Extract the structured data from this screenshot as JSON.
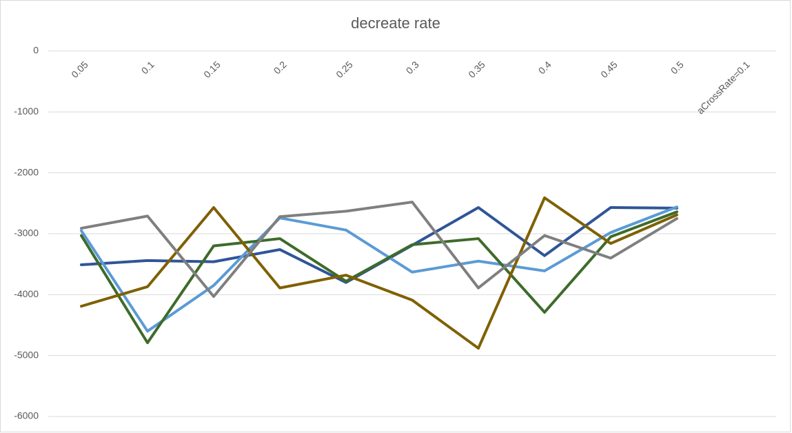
{
  "chart_data": {
    "type": "line",
    "title": "decreate rate",
    "categories": [
      "0.05",
      "0.1",
      "0.15",
      "0.2",
      "0.25",
      "0.3",
      "0.35",
      "0.4",
      "0.45",
      "0.5",
      "aCrossRate=0.1"
    ],
    "series": [
      {
        "color": "#2f5597",
        "values": [
          -3510,
          -3440,
          -3460,
          -3260,
          -3800,
          -3190,
          -2570,
          -3360,
          -2570,
          -2580,
          null
        ]
      },
      {
        "color": "#5b9bd5",
        "values": [
          -2950,
          -4600,
          -3850,
          -2740,
          -2940,
          -3630,
          -3450,
          -3610,
          -2980,
          -2560,
          null
        ]
      },
      {
        "color": "#3e6b2a",
        "values": [
          -3030,
          -4790,
          -3200,
          -3080,
          -3780,
          -3180,
          -3080,
          -4290,
          -3050,
          -2640,
          null
        ]
      },
      {
        "color": "#7f6000",
        "values": [
          -4190,
          -3870,
          -2570,
          -3890,
          -3680,
          -4090,
          -4880,
          -2410,
          -3160,
          -2690,
          null
        ]
      },
      {
        "color": "#7f7f7f",
        "values": [
          -2910,
          -2710,
          -4030,
          -2720,
          -2630,
          -2480,
          -3890,
          -3030,
          -3400,
          -2750,
          null
        ]
      }
    ],
    "ylim": [
      -6000,
      0
    ],
    "yticks": [
      -6000,
      -5000,
      -4000,
      -3000,
      -2000,
      -1000,
      0
    ],
    "grid": true
  }
}
